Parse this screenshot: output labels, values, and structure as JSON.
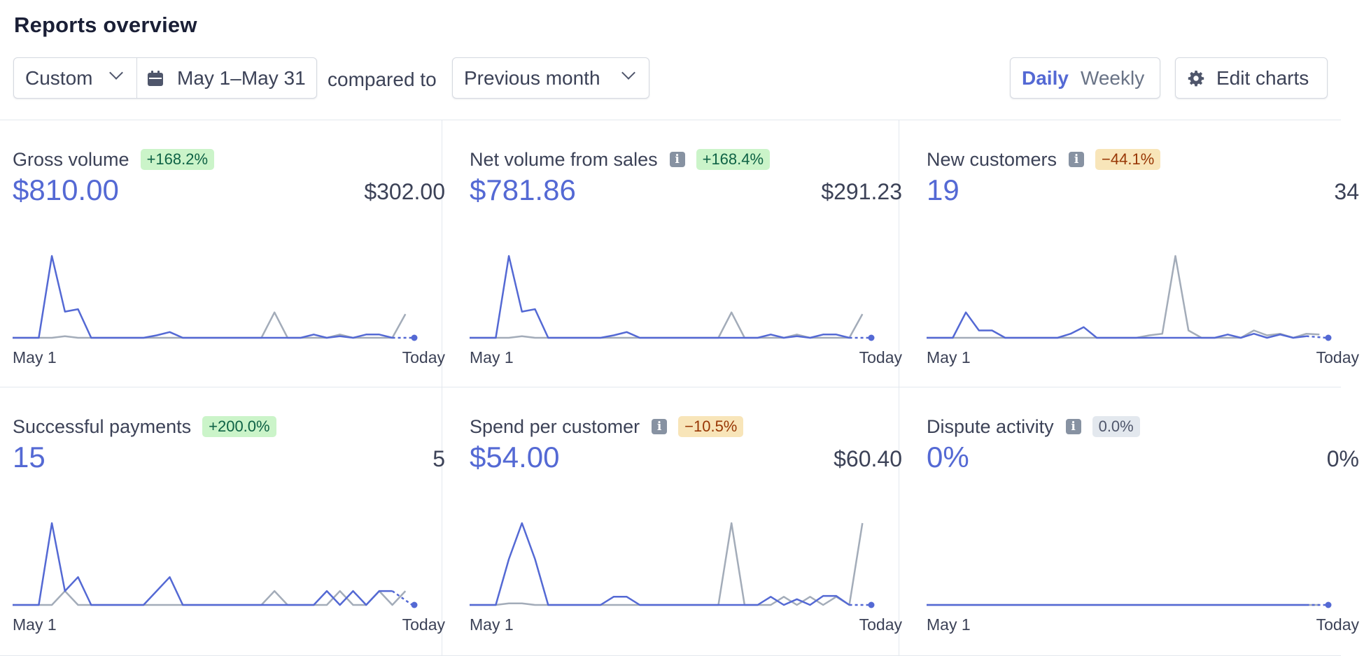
{
  "header": {
    "title": "Reports overview"
  },
  "filters": {
    "range_label": "Custom",
    "date_range": "May 1–May 31",
    "compared_to_label": "compared to",
    "comparison_label": "Previous month",
    "interval_options": [
      "Daily",
      "Weekly"
    ],
    "interval_selected": "Daily",
    "edit_charts_label": "Edit charts"
  },
  "colors": {
    "current_series": "#5469d4",
    "previous_series": "#a3acb9",
    "badge_positive": "#cbf4c9",
    "badge_negative": "#f8e5b9",
    "badge_neutral": "#e3e8ee"
  },
  "icons": {
    "calendar": "calendar-icon",
    "chevron": "chevron-down-icon",
    "gear": "gear-icon",
    "info": "info-icon"
  },
  "cards": [
    {
      "title": "Gross volume",
      "has_info": false,
      "change": "+168.2%",
      "change_tone": "green",
      "current_value": "$810.00",
      "previous_value": "$302.00",
      "axis_start": "May 1",
      "axis_end": "Today"
    },
    {
      "title": "Net volume from sales",
      "has_info": true,
      "change": "+168.4%",
      "change_tone": "green",
      "current_value": "$781.86",
      "previous_value": "$291.23",
      "axis_start": "May 1",
      "axis_end": "Today"
    },
    {
      "title": "New customers",
      "has_info": true,
      "change": "−44.1%",
      "change_tone": "orange",
      "current_value": "19",
      "previous_value": "34",
      "axis_start": "May 1",
      "axis_end": "Today"
    },
    {
      "title": "Successful payments",
      "has_info": false,
      "change": "+200.0%",
      "change_tone": "green",
      "current_value": "15",
      "previous_value": "5",
      "axis_start": "May 1",
      "axis_end": "Today"
    },
    {
      "title": "Spend per customer",
      "has_info": true,
      "change": "−10.5%",
      "change_tone": "orange",
      "current_value": "$54.00",
      "previous_value": "$60.40",
      "axis_start": "May 1",
      "axis_end": "Today"
    },
    {
      "title": "Dispute activity",
      "has_info": true,
      "change": "0.0%",
      "change_tone": "gray",
      "current_value": "0%",
      "previous_value": "0%",
      "axis_start": "May 1",
      "axis_end": "Today"
    }
  ],
  "chart_data": [
    {
      "type": "line",
      "title": "Gross volume",
      "x": [
        1,
        2,
        3,
        4,
        5,
        6,
        7,
        8,
        9,
        10,
        11,
        12,
        13,
        14,
        15,
        16,
        17,
        18,
        19,
        20,
        21,
        22,
        23,
        24,
        25,
        26,
        27,
        28,
        29,
        30,
        31
      ],
      "series": [
        {
          "values": [
            0,
            0,
            0,
            100,
            32,
            35,
            0,
            0,
            0,
            0,
            0,
            3,
            7,
            0,
            0,
            0,
            0,
            0,
            0,
            0,
            0,
            0,
            0,
            4,
            0,
            2,
            0,
            4,
            4,
            0,
            0
          ]
        },
        {
          "values": [
            0,
            0,
            0,
            0,
            2,
            0,
            0,
            0,
            0,
            0,
            0,
            0,
            0,
            0,
            0,
            0,
            0,
            0,
            0,
            0,
            31,
            0,
            0,
            0,
            0,
            4,
            0,
            0,
            0,
            0,
            29
          ]
        }
      ]
    },
    {
      "type": "line",
      "title": "Net volume from sales",
      "x": [
        1,
        2,
        3,
        4,
        5,
        6,
        7,
        8,
        9,
        10,
        11,
        12,
        13,
        14,
        15,
        16,
        17,
        18,
        19,
        20,
        21,
        22,
        23,
        24,
        25,
        26,
        27,
        28,
        29,
        30,
        31
      ],
      "series": [
        {
          "values": [
            0,
            0,
            0,
            100,
            32,
            35,
            0,
            0,
            0,
            0,
            0,
            3,
            7,
            0,
            0,
            0,
            0,
            0,
            0,
            0,
            0,
            0,
            0,
            4,
            0,
            2,
            0,
            4,
            4,
            0,
            0
          ]
        },
        {
          "values": [
            0,
            0,
            0,
            0,
            2,
            0,
            0,
            0,
            0,
            0,
            0,
            0,
            0,
            0,
            0,
            0,
            0,
            0,
            0,
            0,
            31,
            0,
            0,
            0,
            0,
            4,
            0,
            0,
            0,
            0,
            29
          ]
        }
      ]
    },
    {
      "type": "line",
      "title": "New customers",
      "x": [
        1,
        2,
        3,
        4,
        5,
        6,
        7,
        8,
        9,
        10,
        11,
        12,
        13,
        14,
        15,
        16,
        17,
        18,
        19,
        20,
        21,
        22,
        23,
        24,
        25,
        26,
        27,
        28,
        29,
        30,
        31
      ],
      "series": [
        {
          "values": [
            0,
            0,
            0,
            31,
            9,
            9,
            0,
            0,
            0,
            0,
            0,
            5,
            13,
            0,
            0,
            0,
            0,
            0,
            0,
            0,
            0,
            0,
            0,
            4,
            0,
            5,
            0,
            4,
            0,
            2,
            0
          ]
        },
        {
          "values": [
            0,
            0,
            0,
            0,
            0,
            0,
            0,
            0,
            0,
            0,
            0,
            0,
            0,
            0,
            0,
            0,
            0,
            3,
            5,
            100,
            9,
            0,
            0,
            0,
            0,
            9,
            3,
            5,
            0,
            5,
            4
          ]
        }
      ]
    },
    {
      "type": "line",
      "title": "Successful payments",
      "x": [
        1,
        2,
        3,
        4,
        5,
        6,
        7,
        8,
        9,
        10,
        11,
        12,
        13,
        14,
        15,
        16,
        17,
        18,
        19,
        20,
        21,
        22,
        23,
        24,
        25,
        26,
        27,
        28,
        29,
        30,
        31
      ],
      "series": [
        {
          "values": [
            0,
            0,
            0,
            100,
            17,
            34,
            0,
            0,
            0,
            0,
            0,
            17,
            34,
            0,
            0,
            0,
            0,
            0,
            0,
            0,
            0,
            0,
            0,
            0,
            17,
            0,
            17,
            0,
            17,
            17,
            0
          ]
        },
        {
          "values": [
            0,
            0,
            0,
            0,
            17,
            0,
            0,
            0,
            0,
            0,
            0,
            0,
            0,
            0,
            0,
            0,
            0,
            0,
            0,
            0,
            17,
            0,
            0,
            0,
            0,
            17,
            0,
            0,
            17,
            0,
            17
          ]
        }
      ]
    },
    {
      "type": "line",
      "title": "Spend per customer",
      "x": [
        1,
        2,
        3,
        4,
        5,
        6,
        7,
        8,
        9,
        10,
        11,
        12,
        13,
        14,
        15,
        16,
        17,
        18,
        19,
        20,
        21,
        22,
        23,
        24,
        25,
        26,
        27,
        28,
        29,
        30,
        31
      ],
      "series": [
        {
          "values": [
            0,
            0,
            0,
            56,
            100,
            56,
            0,
            0,
            0,
            0,
            0,
            10,
            10,
            0,
            0,
            0,
            0,
            0,
            0,
            0,
            0,
            0,
            0,
            10,
            0,
            7,
            0,
            11,
            11,
            0,
            0
          ]
        },
        {
          "values": [
            0,
            0,
            0,
            2,
            2,
            0,
            0,
            0,
            0,
            0,
            0,
            0,
            0,
            0,
            0,
            0,
            0,
            0,
            0,
            0,
            100,
            0,
            0,
            0,
            10,
            0,
            10,
            0,
            10,
            0,
            100
          ]
        }
      ]
    },
    {
      "type": "line",
      "title": "Dispute activity",
      "x": [
        1,
        2,
        3,
        4,
        5,
        6,
        7,
        8,
        9,
        10,
        11,
        12,
        13,
        14,
        15,
        16,
        17,
        18,
        19,
        20,
        21,
        22,
        23,
        24,
        25,
        26,
        27,
        28,
        29,
        30,
        31
      ],
      "series": [
        {
          "values": [
            0,
            0,
            0,
            0,
            0,
            0,
            0,
            0,
            0,
            0,
            0,
            0,
            0,
            0,
            0,
            0,
            0,
            0,
            0,
            0,
            0,
            0,
            0,
            0,
            0,
            0,
            0,
            0,
            0,
            0,
            0
          ]
        },
        {
          "values": [
            0,
            0,
            0,
            0,
            0,
            0,
            0,
            0,
            0,
            0,
            0,
            0,
            0,
            0,
            0,
            0,
            0,
            0,
            0,
            0,
            0,
            0,
            0,
            0,
            0,
            0,
            0,
            0,
            0,
            0,
            0
          ]
        }
      ]
    }
  ]
}
